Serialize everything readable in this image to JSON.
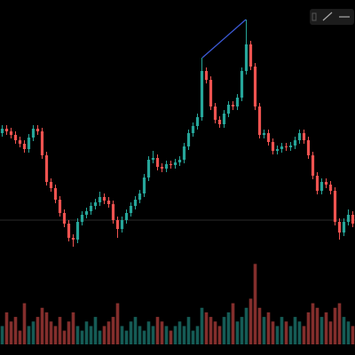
{
  "chart_data": {
    "type": "candlestick",
    "up_color": "#26a69a",
    "down_color": "#ef5350",
    "ylim": [
      0,
      300
    ],
    "volume_ylim": [
      0,
      100
    ],
    "open": [
      150,
      155,
      152,
      148,
      142,
      138,
      132,
      145,
      155,
      152,
      125,
      95,
      88,
      75,
      60,
      48,
      32,
      30,
      50,
      58,
      62,
      68,
      72,
      78,
      74,
      70,
      52,
      42,
      52,
      60,
      68,
      75,
      82,
      100,
      120,
      122,
      112,
      110,
      115,
      114,
      117,
      120,
      135,
      150,
      158,
      168,
      220,
      210,
      180,
      165,
      160,
      172,
      182,
      180,
      190,
      220,
      250,
      225,
      180,
      148,
      150,
      140,
      130,
      132,
      135,
      134,
      136,
      142,
      150,
      142,
      125,
      102,
      85,
      95,
      92,
      85,
      50,
      38,
      50,
      58
    ],
    "high": [
      159,
      159,
      156,
      152,
      146,
      142,
      149,
      159,
      159,
      156,
      129,
      99,
      92,
      79,
      64,
      52,
      36,
      54,
      62,
      66,
      72,
      76,
      84,
      82,
      78,
      74,
      56,
      56,
      64,
      72,
      79,
      86,
      104,
      124,
      130,
      126,
      116,
      119,
      119,
      121,
      124,
      139,
      154,
      162,
      172,
      235,
      224,
      214,
      184,
      169,
      176,
      186,
      186,
      194,
      224,
      278,
      254,
      229,
      184,
      154,
      154,
      144,
      136,
      139,
      139,
      140,
      146,
      154,
      154,
      146,
      129,
      106,
      99,
      99,
      96,
      89,
      54,
      54,
      64,
      62
    ],
    "low": [
      146,
      148,
      144,
      138,
      134,
      128,
      128,
      141,
      148,
      121,
      91,
      84,
      71,
      56,
      44,
      28,
      22,
      26,
      46,
      54,
      58,
      64,
      68,
      70,
      66,
      48,
      32,
      38,
      48,
      56,
      64,
      71,
      78,
      96,
      116,
      108,
      106,
      106,
      110,
      110,
      113,
      116,
      131,
      146,
      154,
      164,
      206,
      176,
      161,
      156,
      156,
      168,
      176,
      176,
      186,
      216,
      221,
      176,
      144,
      144,
      136,
      126,
      126,
      128,
      130,
      130,
      132,
      138,
      138,
      121,
      98,
      81,
      81,
      88,
      81,
      46,
      30,
      34,
      46,
      44
    ],
    "close": [
      155,
      152,
      148,
      142,
      138,
      132,
      145,
      155,
      152,
      125,
      95,
      88,
      75,
      60,
      48,
      32,
      30,
      50,
      58,
      62,
      68,
      72,
      78,
      74,
      70,
      52,
      42,
      52,
      60,
      68,
      75,
      82,
      100,
      120,
      122,
      112,
      110,
      115,
      114,
      117,
      120,
      135,
      150,
      158,
      168,
      220,
      210,
      180,
      165,
      160,
      172,
      182,
      180,
      190,
      220,
      250,
      225,
      180,
      148,
      150,
      140,
      130,
      132,
      135,
      134,
      136,
      142,
      150,
      142,
      125,
      102,
      85,
      95,
      92,
      85,
      50,
      38,
      50,
      58,
      48
    ],
    "volume": [
      20,
      35,
      25,
      30,
      15,
      45,
      20,
      25,
      30,
      40,
      35,
      25,
      20,
      30,
      15,
      25,
      35,
      20,
      15,
      25,
      20,
      30,
      15,
      20,
      25,
      30,
      45,
      20,
      15,
      25,
      30,
      20,
      15,
      25,
      20,
      30,
      25,
      20,
      15,
      20,
      25,
      20,
      30,
      15,
      20,
      40,
      35,
      30,
      25,
      20,
      30,
      35,
      45,
      25,
      30,
      40,
      50,
      88,
      40,
      30,
      35,
      25,
      20,
      30,
      25,
      20,
      30,
      25,
      20,
      35,
      45,
      40,
      30,
      35,
      25,
      40,
      45,
      30,
      25,
      20
    ]
  }
}
